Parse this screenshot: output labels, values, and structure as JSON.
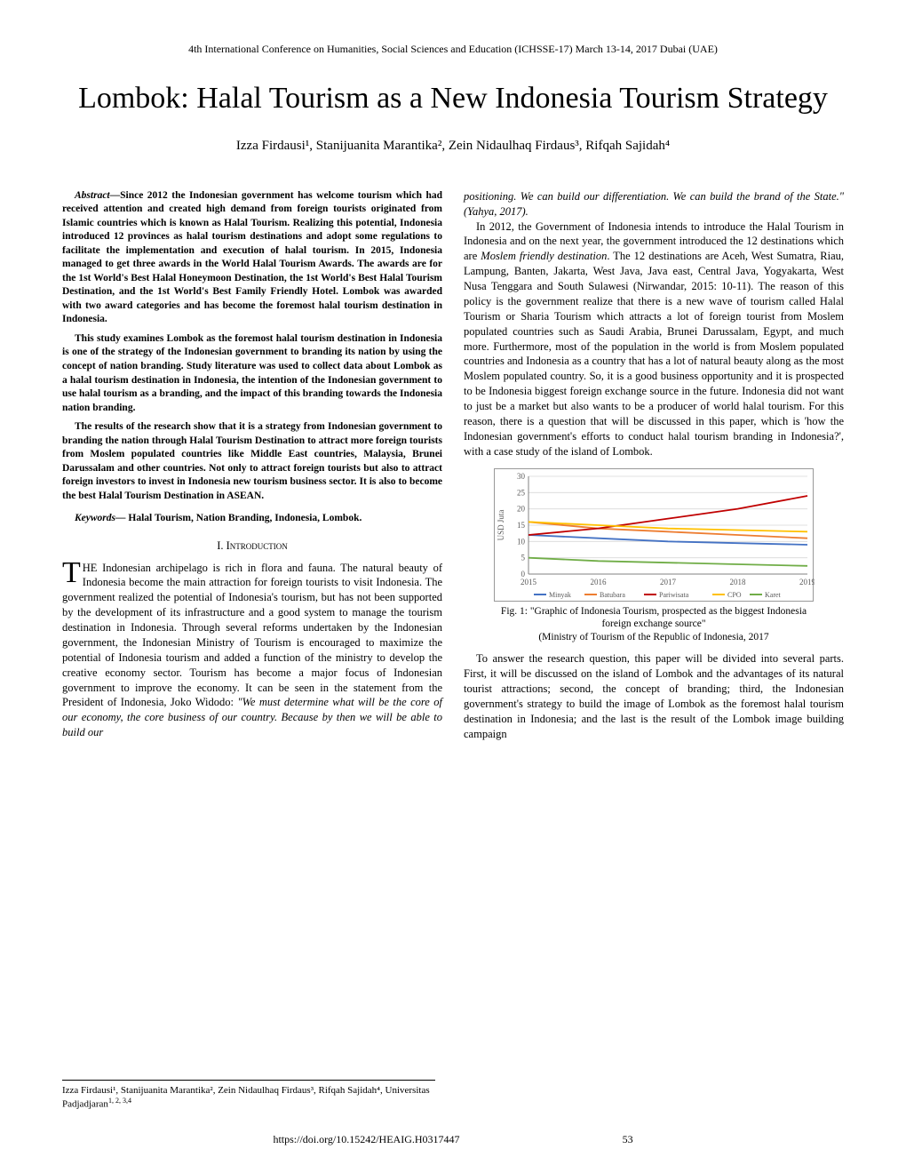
{
  "conference_header": "4th International Conference on Humanities, Social Sciences and Education (ICHSSE-17) March 13-14, 2017 Dubai (UAE)",
  "title": "Lombok: Halal Tourism as a New Indonesia Tourism Strategy",
  "authors_html": "Izza Firdausi¹, Stanijuanita Marantika², Zein Nidaulhaq Firdaus³, Rifqah Sajidah⁴",
  "abstract": {
    "label": "Abstract—",
    "p1": "Since 2012 the Indonesian government has welcome tourism which had received attention and created high demand from foreign tourists originated from Islamic countries which is known as Halal Tourism. Realizing this potential, Indonesia introduced 12 provinces as halal tourism destinations and adopt some regulations to facilitate the implementation and execution of halal tourism. In 2015, Indonesia managed to get three awards in the World Halal Tourism Awards. The awards are for the 1st World's Best Halal Honeymoon Destination, the 1st World's Best Halal Tourism Destination, and the 1st World's Best Family Friendly Hotel. Lombok was awarded with two award categories and has become the foremost halal tourism destination in Indonesia.",
    "p2": "This study examines Lombok as the foremost halal tourism destination in Indonesia is one of the strategy of the Indonesian government to branding its nation by using the concept of nation branding. Study literature was used to collect data about Lombok as a halal tourism destination in Indonesia, the intention of the Indonesian government to use halal tourism as a branding, and the impact of this branding towards the Indonesia nation branding.",
    "p3": "The results of the research show that it is a strategy from Indonesian government to branding the nation through Halal Tourism Destination to attract more foreign tourists from Moslem populated countries like Middle East countries, Malaysia, Brunei Darussalam and other countries. Not only to attract foreign tourists but also to attract foreign investors to invest in Indonesia new tourism business sector. It is also to become the best Halal Tourism Destination in ASEAN."
  },
  "keywords": {
    "label": "Keywords—",
    "text": " Halal Tourism, Nation Branding, Indonesia, Lombok."
  },
  "section1_heading": "I.  Introduction",
  "intro": {
    "dropcap": "T",
    "p1_after_drop": "HE Indonesian archipelago is rich in flora and fauna. The natural beauty of Indonesia become the main attraction for foreign tourists to visit Indonesia. The government realized the potential of Indonesia's tourism, but has not been supported by the development of its infrastructure and a good system to manage the tourism destination in Indonesia. Through several reforms undertaken by the Indonesian government, the Indonesian Ministry of Tourism is encouraged to maximize the potential of Indonesia tourism and added a function of the ministry to develop the creative economy sector. Tourism has become a major focus of Indonesian government to improve the economy. It can be seen in the statement from the President of Indonesia, Joko Widodo: ",
    "quote_part1": "\"We must determine what will be the core of our economy, the core business of our country. Because by then we will be able to build our"
  },
  "col2": {
    "quote_cont": "positioning. We can build our differentiation. We can build the brand of the State.\"",
    "cite1": " (Yahya, 2017).",
    "p2": "In 2012, the Government of Indonesia intends to introduce the Halal Tourism in Indonesia and on the next year, the government introduced the 12 destinations which are ",
    "p2_italic": "Moslem friendly destination",
    "p2_cont": ".  The 12 destinations are Aceh, West Sumatra, Riau, Lampung, Banten, Jakarta, West Java, Java east, Central Java, Yogyakarta, West Nusa Tenggara and South Sulawesi (Nirwandar, 2015: 10-11). The reason of this policy is the government realize that there is a new wave of tourism called Halal Tourism or Sharia Tourism which attracts a lot of foreign tourist from Moslem populated countries such as Saudi Arabia, Brunei Darussalam, Egypt, and much more. Furthermore, most of the population in the world is from Moslem populated countries and Indonesia as a country that has a lot of natural beauty along as the most Moslem populated country. So, it is a good business opportunity and it is prospected to be Indonesia biggest foreign exchange source in the future. Indonesia did not want to just be a market but also wants to be a producer of world halal tourism. For this reason, there is a question that will be discussed in this paper, which is 'how the Indonesian government's efforts to conduct halal tourism branding in Indonesia?', with a case study of the island of Lombok.",
    "p3": "To answer the research question, this paper will be divided into several parts. First, it will be discussed on the island of Lombok and the advantages of its natural tourist attractions; second, the concept of branding; third, the Indonesian government's strategy to build the image of Lombok as the foremost halal tourism destination in Indonesia; and the last is the result of the Lombok image building campaign"
  },
  "figure": {
    "caption_line1": "Fig. 1: \"Graphic of Indonesia Tourism, prospected as the biggest Indonesia foreign exchange source\"",
    "caption_line2": "(Ministry of Tourism of the Republic of Indonesia, 2017",
    "chart": {
      "type": "line",
      "ylabel": "USD Juta",
      "ylim": [
        0,
        30
      ],
      "yticks": [
        0,
        5,
        10,
        15,
        20,
        25,
        30
      ],
      "xticks": [
        "2015",
        "2016",
        "2017",
        "2018",
        "2019"
      ],
      "series": [
        {
          "name": "Minyak",
          "color": "#4472c4",
          "values": [
            12,
            11,
            10,
            9.5,
            9
          ]
        },
        {
          "name": "Batubara",
          "color": "#ed7d31",
          "values": [
            16,
            14,
            13,
            12,
            11
          ]
        },
        {
          "name": "Pariwisata",
          "color": "#c00000",
          "values": [
            12,
            14,
            17,
            20,
            24
          ]
        },
        {
          "name": "CPO",
          "color": "#ffc000",
          "values": [
            16,
            15,
            14,
            13.5,
            13
          ]
        },
        {
          "name": "Karet",
          "color": "#70ad47",
          "values": [
            5,
            4,
            3.5,
            3,
            2.5
          ]
        }
      ],
      "background_color": "#ffffff",
      "grid_color": "#d9d9d9",
      "axis_color": "#808080",
      "tick_fontsize": 9,
      "label_fontsize": 9,
      "legend_fontsize": 8
    }
  },
  "affiliation": "Izza Firdausi¹, Stanijuanita Marantika², Zein Nidaulhaq Firdaus³, Rifqah Sajidah⁴, Universitas Padjadjaran",
  "affiliation_sup": "1, 2, 3,4",
  "doi": "https://doi.org/10.15242/HEAIG.H0317447",
  "page_number": "53"
}
